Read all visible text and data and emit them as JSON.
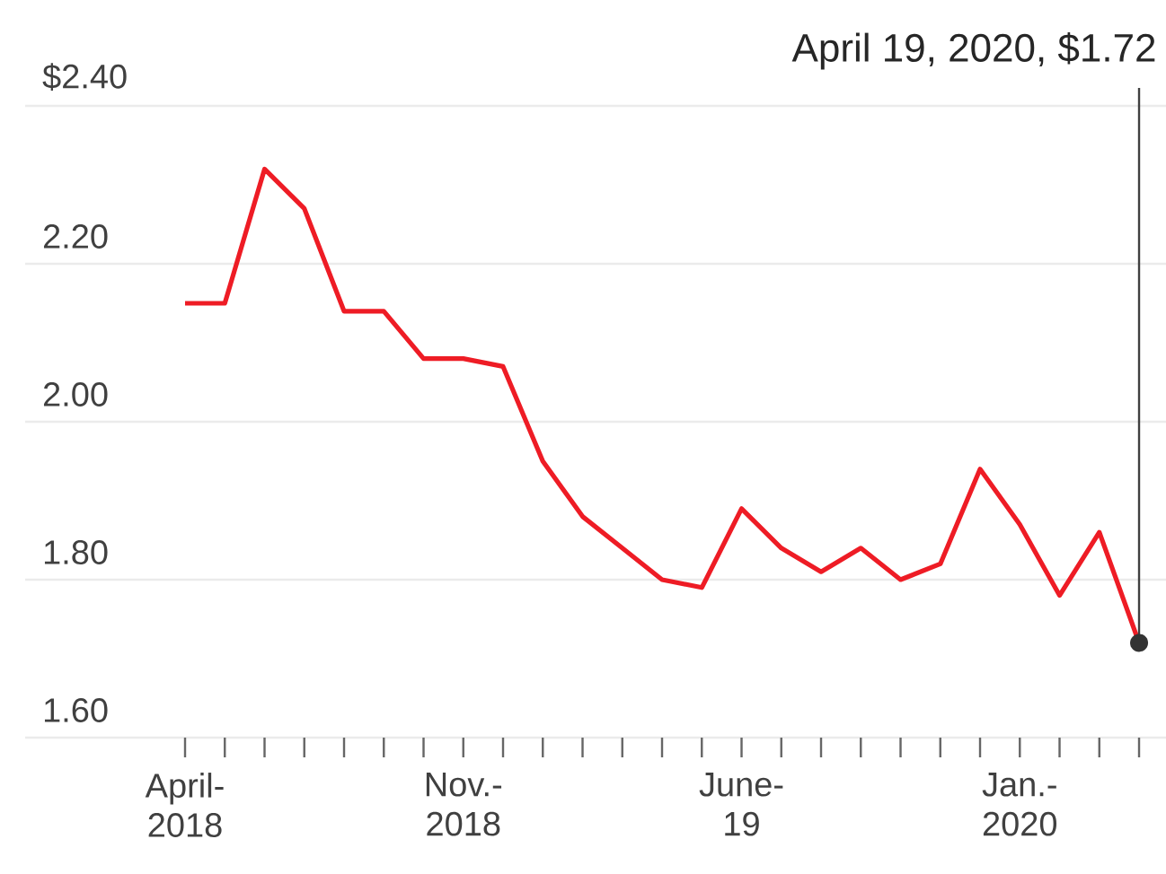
{
  "chart_data": {
    "type": "line",
    "categories": [
      "April- 2018",
      null,
      null,
      null,
      null,
      null,
      null,
      "Nov.- 2018",
      null,
      null,
      null,
      null,
      null,
      null,
      "June- 19",
      null,
      null,
      null,
      null,
      null,
      null,
      "Jan.- 2020",
      null,
      null,
      null
    ],
    "series": [
      {
        "color": "#ee1c25",
        "values": [
          2.15,
          2.15,
          2.32,
          2.27,
          2.14,
          2.14,
          2.08,
          2.08,
          2.07,
          1.95,
          1.88,
          1.84,
          1.8,
          1.79,
          1.89,
          1.84,
          1.81,
          1.84,
          1.8,
          1.82,
          1.94,
          1.87,
          1.78,
          1.86,
          1.72
        ]
      }
    ],
    "ylim": [
      1.6,
      2.4
    ],
    "yticks": [
      {
        "value": 1.6,
        "label": "1.60"
      },
      {
        "value": 1.8,
        "label": "1.80"
      },
      {
        "value": 2.0,
        "label": "2.00"
      },
      {
        "value": 2.2,
        "label": "2.20"
      },
      {
        "value": 2.4,
        "label": "$2.40"
      }
    ],
    "annotations": [
      "April 19, 2020, $1.72"
    ],
    "grid": "y",
    "marker": "none",
    "line_style": "solid"
  }
}
